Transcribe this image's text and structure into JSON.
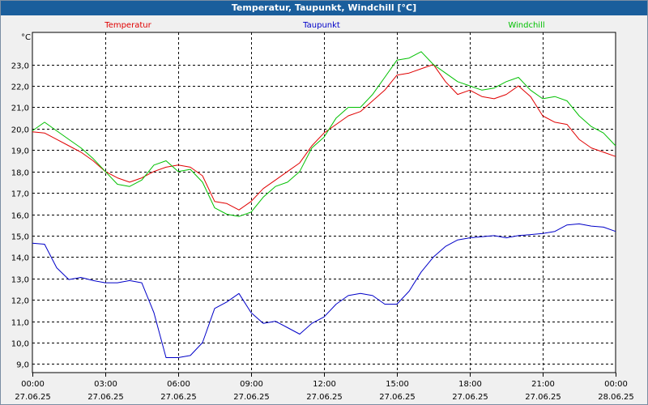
{
  "window": {
    "title": "Temperatur, Taupunkt, Windchill [°C]"
  },
  "chart_data": {
    "type": "line",
    "title": "Temperatur, Taupunkt, Windchill [°C]",
    "ylabel": "°C",
    "ylim": [
      8.6,
      24.5
    ],
    "yticks": [
      "9,0",
      "10,0",
      "11,0",
      "12,0",
      "13,0",
      "14,0",
      "15,0",
      "16,0",
      "17,0",
      "18,0",
      "19,0",
      "20,0",
      "21,0",
      "22,0",
      "23,0"
    ],
    "ytick_values": [
      9,
      10,
      11,
      12,
      13,
      14,
      15,
      16,
      17,
      18,
      19,
      20,
      21,
      22,
      23
    ],
    "xlim": [
      0,
      24
    ],
    "xticks": [
      {
        "time": "00:00",
        "date": "27.06.25"
      },
      {
        "time": "03:00",
        "date": "27.06.25"
      },
      {
        "time": "06:00",
        "date": "27.06.25"
      },
      {
        "time": "09:00",
        "date": "27.06.25"
      },
      {
        "time": "12:00",
        "date": "27.06.25"
      },
      {
        "time": "15:00",
        "date": "27.06.25"
      },
      {
        "time": "18:00",
        "date": "27.06.25"
      },
      {
        "time": "21:00",
        "date": "27.06.25"
      },
      {
        "time": "00:00",
        "date": "28.06.25"
      }
    ],
    "xtick_values": [
      0,
      3,
      6,
      9,
      12,
      15,
      18,
      21,
      24
    ],
    "grid": true,
    "legend_placement": "top",
    "series": [
      {
        "name": "Temperatur",
        "color": "#e00000",
        "x": [
          0,
          0.5,
          1,
          1.5,
          2,
          2.5,
          3,
          3.5,
          4,
          4.5,
          5,
          5.5,
          6,
          6.5,
          7,
          7.5,
          8,
          8.5,
          9,
          9.5,
          10,
          10.5,
          11,
          11.5,
          12,
          12.5,
          13,
          13.5,
          14,
          14.5,
          15,
          15.5,
          16,
          16.5,
          17,
          17.5,
          18,
          18.5,
          19,
          19.5,
          20,
          20.5,
          21,
          21.5,
          22,
          22.5,
          23,
          23.5,
          24
        ],
        "values": [
          19.85,
          19.8,
          19.5,
          19.2,
          18.9,
          18.5,
          18.0,
          17.7,
          17.5,
          17.7,
          18.0,
          18.2,
          18.3,
          18.2,
          17.8,
          16.6,
          16.5,
          16.2,
          16.6,
          17.2,
          17.6,
          18.0,
          18.4,
          19.2,
          19.8,
          20.2,
          20.6,
          20.8,
          21.3,
          21.8,
          22.5,
          22.6,
          22.8,
          23.0,
          22.2,
          21.6,
          21.8,
          21.5,
          21.4,
          21.6,
          22.0,
          21.5,
          20.6,
          20.3,
          20.2,
          19.5,
          19.1,
          18.9,
          18.7
        ]
      },
      {
        "name": "Taupunkt",
        "color": "#0000c8",
        "x": [
          0,
          0.5,
          1,
          1.5,
          2,
          2.5,
          3,
          3.5,
          4,
          4.5,
          5,
          5.5,
          6,
          6.5,
          7,
          7.5,
          8,
          8.5,
          9,
          9.5,
          10,
          10.5,
          11,
          11.5,
          12,
          12.5,
          13,
          13.5,
          14,
          14.5,
          15,
          15.5,
          16,
          16.5,
          17,
          17.5,
          18,
          18.5,
          19,
          19.5,
          20,
          20.5,
          21,
          21.5,
          22,
          22.5,
          23,
          23.5,
          24
        ],
        "values": [
          14.65,
          14.6,
          13.5,
          12.95,
          13.05,
          12.9,
          12.8,
          12.8,
          12.9,
          12.8,
          11.4,
          9.3,
          9.3,
          9.4,
          10.0,
          11.6,
          11.9,
          12.3,
          11.4,
          10.9,
          11.0,
          10.7,
          10.4,
          10.9,
          11.2,
          11.8,
          12.2,
          12.3,
          12.2,
          11.8,
          11.8,
          12.4,
          13.3,
          14.0,
          14.5,
          14.8,
          14.9,
          14.95,
          15.0,
          14.9,
          15.0,
          15.05,
          15.1,
          15.2,
          15.5,
          15.55,
          15.45,
          15.4,
          15.2
        ]
      },
      {
        "name": "Windchill",
        "color": "#00c000",
        "x": [
          0,
          0.5,
          1,
          1.5,
          2,
          2.5,
          3,
          3.5,
          4,
          4.5,
          5,
          5.5,
          6,
          6.5,
          7,
          7.5,
          8,
          8.5,
          9,
          9.5,
          10,
          10.5,
          11,
          11.5,
          12,
          12.5,
          13,
          13.5,
          14,
          14.5,
          15,
          15.5,
          16,
          16.5,
          17,
          17.5,
          18,
          18.5,
          19,
          19.5,
          20,
          20.5,
          21,
          21.5,
          22,
          22.5,
          23,
          23.5,
          24
        ],
        "values": [
          19.9,
          20.3,
          19.9,
          19.5,
          19.1,
          18.6,
          18.0,
          17.4,
          17.3,
          17.6,
          18.3,
          18.5,
          18.0,
          18.1,
          17.5,
          16.3,
          16.0,
          15.9,
          16.1,
          16.8,
          17.3,
          17.5,
          18.0,
          19.1,
          19.6,
          20.5,
          21.0,
          21.0,
          21.6,
          22.4,
          23.2,
          23.3,
          23.6,
          23.0,
          22.6,
          22.2,
          22.0,
          21.8,
          21.9,
          22.2,
          22.4,
          21.8,
          21.4,
          21.5,
          21.3,
          20.6,
          20.1,
          19.8,
          19.2
        ]
      }
    ]
  }
}
